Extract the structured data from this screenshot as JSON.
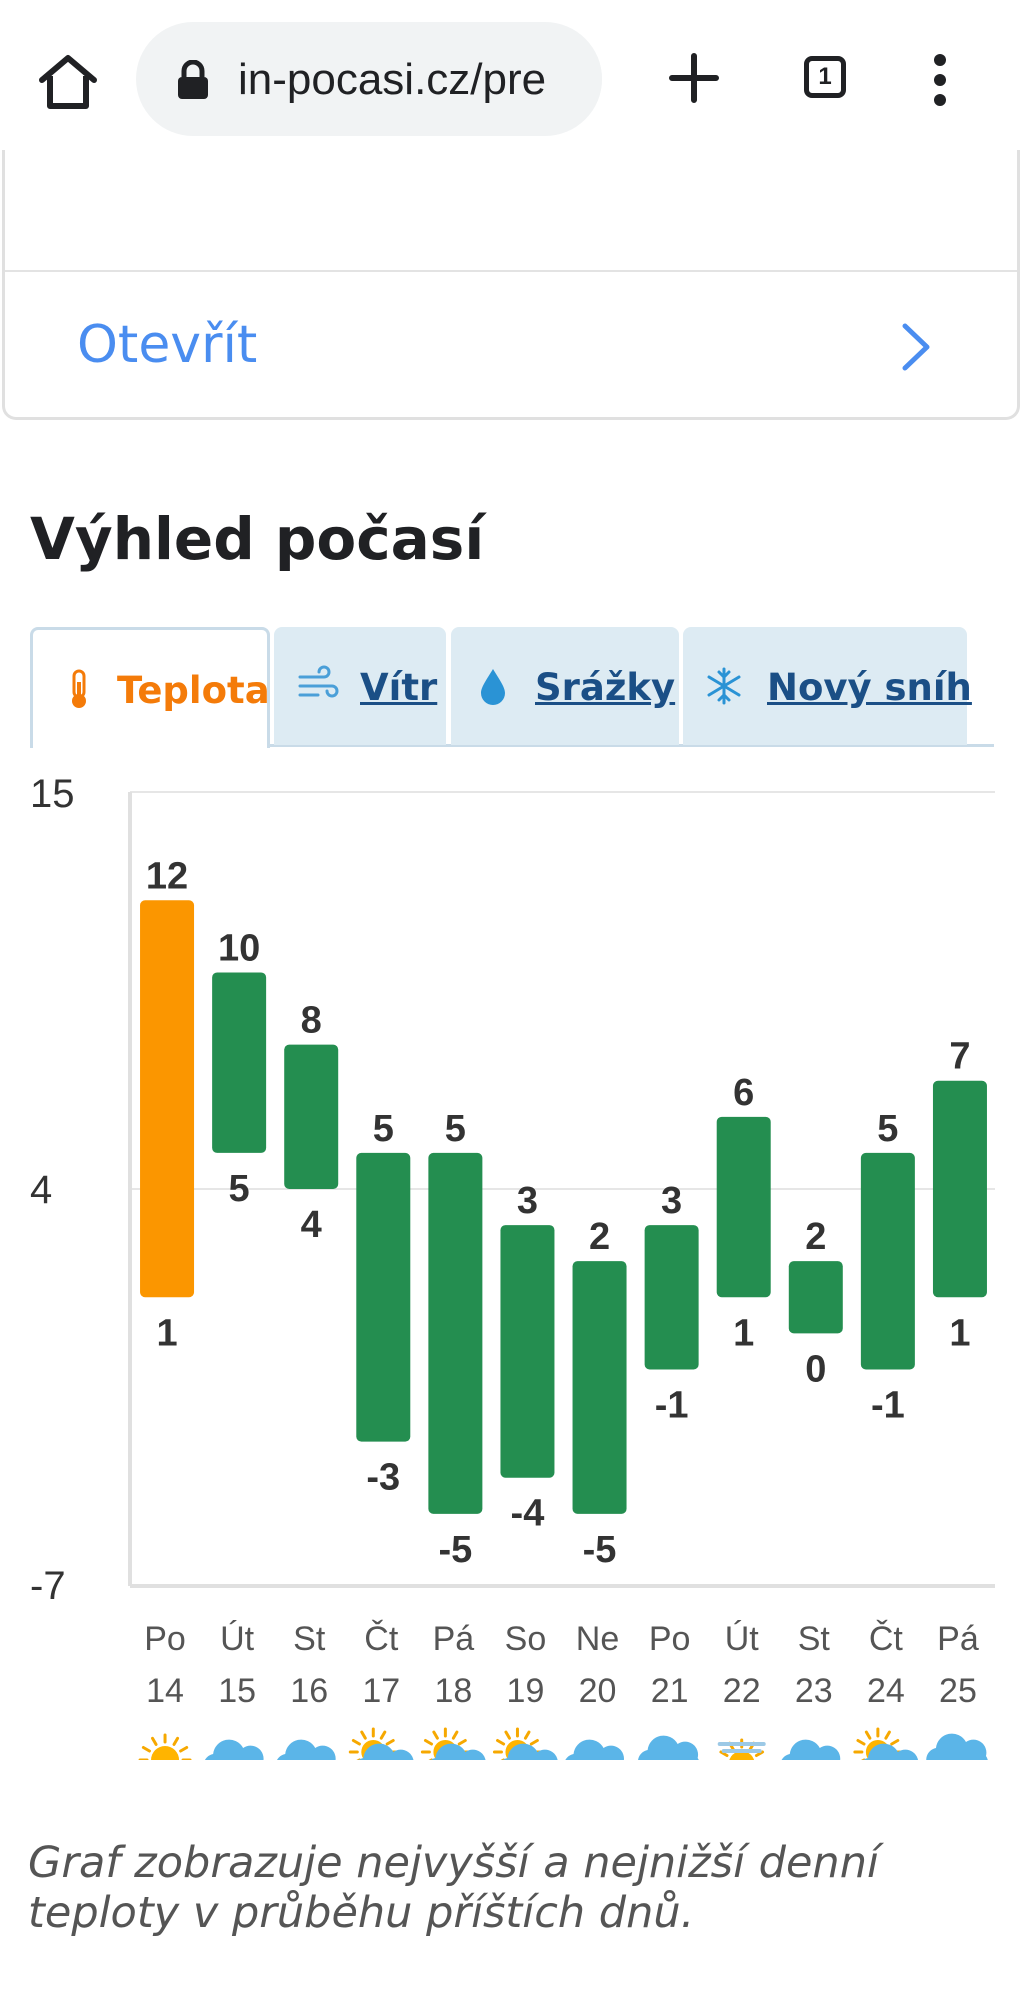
{
  "browser": {
    "url": "in-pocasi.cz/pre",
    "tab_count": "1"
  },
  "card": {
    "open_label": "Otevřít"
  },
  "section": {
    "title": "Výhled počasí",
    "tabs": [
      {
        "label": "Teplota",
        "icon": "thermometer-icon",
        "active": true
      },
      {
        "label": "Vítr",
        "icon": "wind-icon",
        "active": false
      },
      {
        "label": "Srážky",
        "icon": "raindrop-icon",
        "active": false
      },
      {
        "label": "Nový sníh",
        "icon": "snowflake-icon",
        "active": false
      }
    ]
  },
  "colors": {
    "highlight_bar": "#fb9600",
    "bar": "#248e50",
    "active_tab": "#f47b09",
    "tab_link": "#1b4f86",
    "link": "#4a8df0"
  },
  "chart_data": {
    "type": "bar",
    "subtype": "floating-range",
    "y_ticks": [
      "15",
      "4",
      "-7"
    ],
    "ylim": [
      -7,
      15
    ],
    "grid": true,
    "days": [
      {
        "name": "Po",
        "date": "14",
        "max": 12,
        "min": 1,
        "icon": "sun-icon",
        "highlight": true
      },
      {
        "name": "Út",
        "date": "15",
        "max": 10,
        "min": 5,
        "icon": "cloud-icon"
      },
      {
        "name": "St",
        "date": "16",
        "max": 8,
        "min": 4,
        "icon": "cloud-icon"
      },
      {
        "name": "Čt",
        "date": "17",
        "max": 5,
        "min": -3,
        "icon": "sun-cloud-icon"
      },
      {
        "name": "Pá",
        "date": "18",
        "max": 5,
        "min": -5,
        "icon": "sun-cloud-icon"
      },
      {
        "name": "So",
        "date": "19",
        "max": 3,
        "min": -4,
        "icon": "sun-cloud-icon"
      },
      {
        "name": "Ne",
        "date": "20",
        "max": 2,
        "min": -5,
        "icon": "cloud-icon"
      },
      {
        "name": "Po",
        "date": "21",
        "max": 3,
        "min": -1,
        "icon": "cloud-snow-icon"
      },
      {
        "name": "Út",
        "date": "22",
        "max": 6,
        "min": 1,
        "icon": "sun-fog-icon"
      },
      {
        "name": "St",
        "date": "23",
        "max": 2,
        "min": 0,
        "icon": "cloud-icon"
      },
      {
        "name": "Čt",
        "date": "24",
        "max": 5,
        "min": -1,
        "icon": "sun-cloud-icon"
      },
      {
        "name": "Pá",
        "date": "25",
        "max": 7,
        "min": 1,
        "icon": "cloud-rain-icon"
      }
    ]
  },
  "caption": "Graf zobrazuje nejvyšší a nejnižší denní teploty v průběhu příštích dnů."
}
